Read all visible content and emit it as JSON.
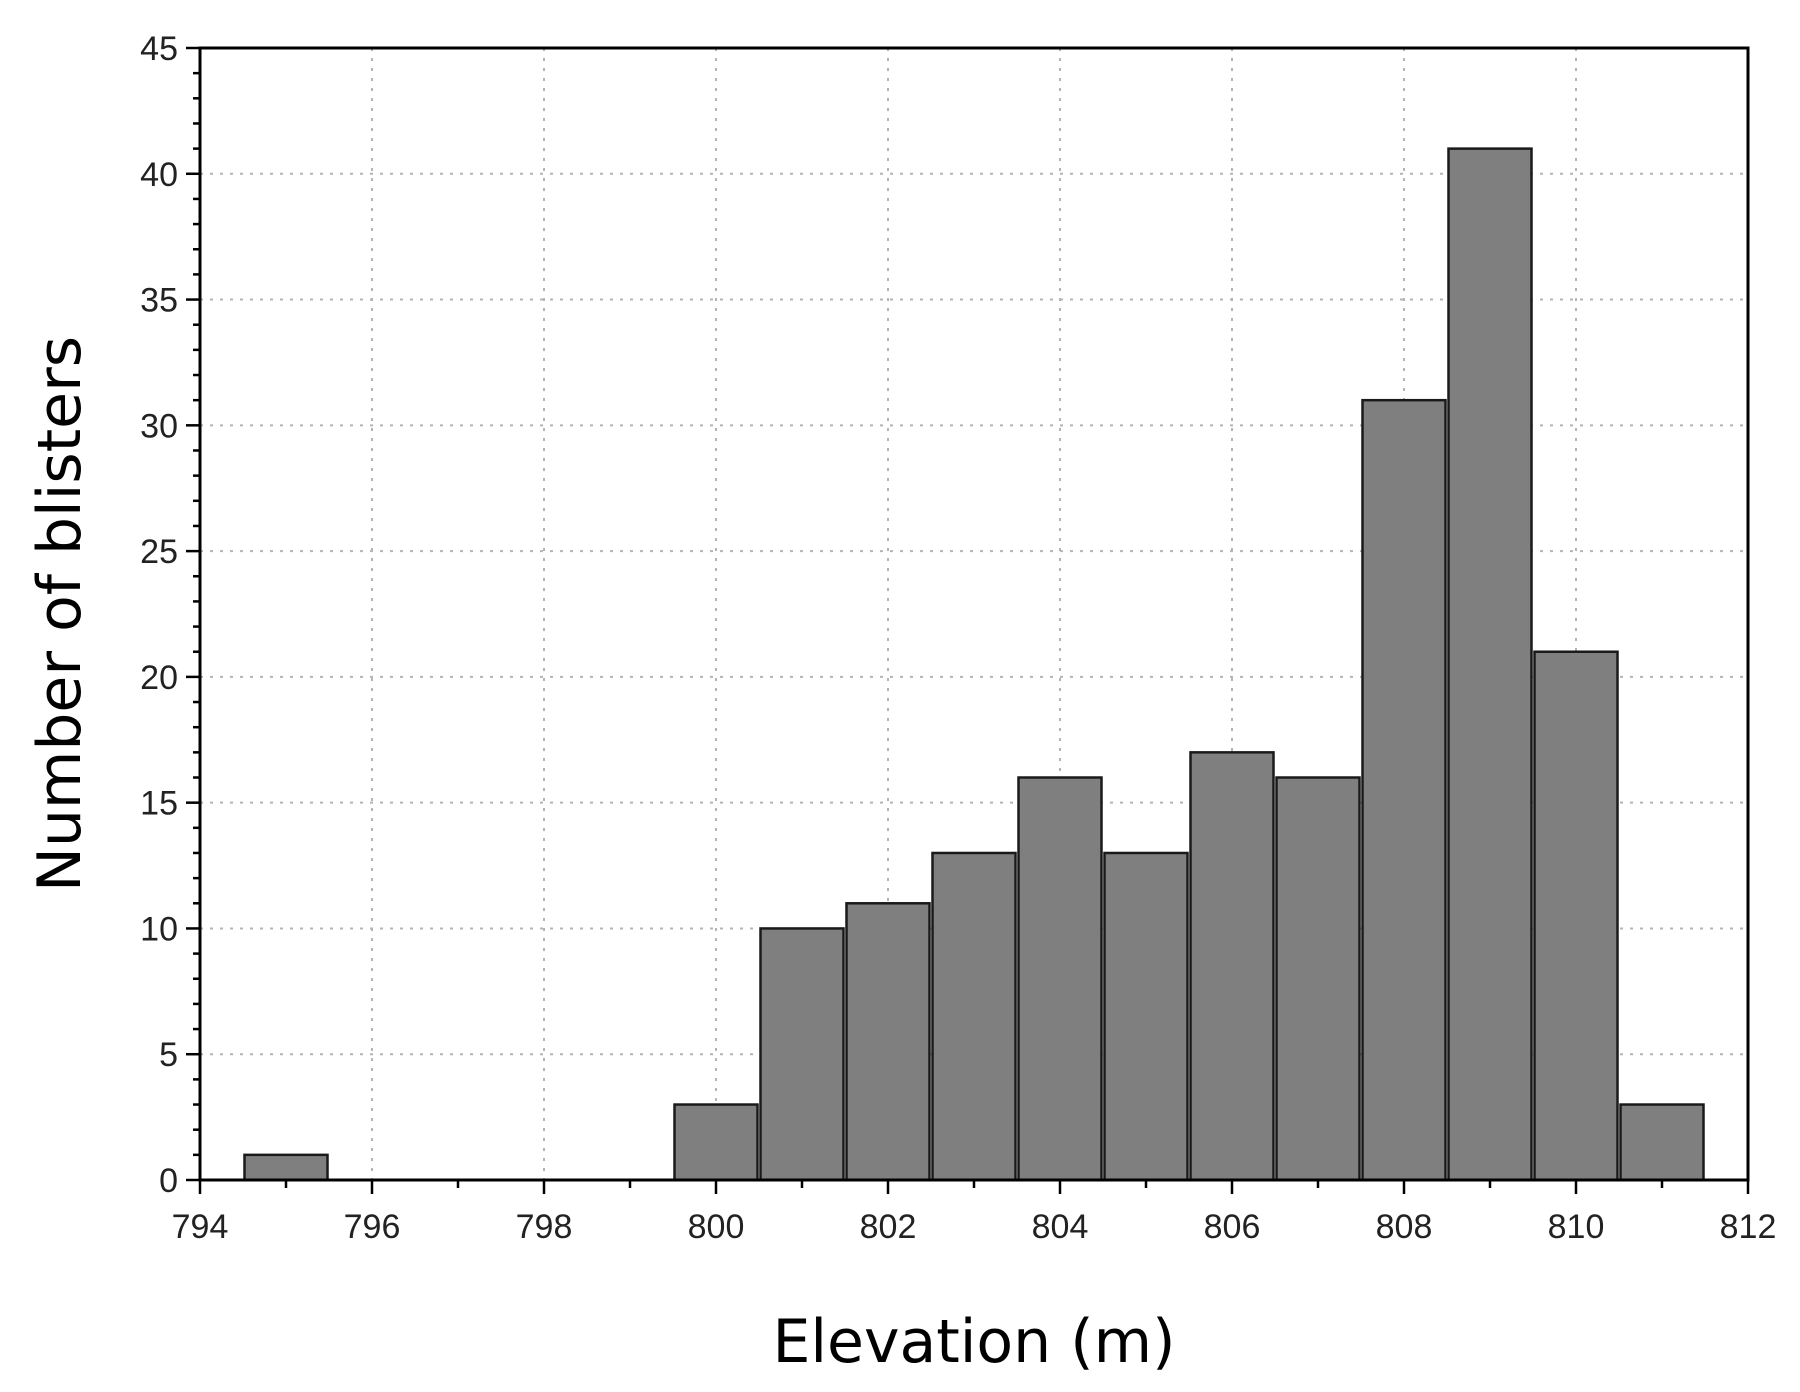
{
  "chart_data": {
    "type": "bar",
    "xlabel": "Elevation (m)",
    "ylabel": "Number of blisters",
    "xlim": [
      794,
      812
    ],
    "ylim": [
      0,
      45
    ],
    "x_ticks": [
      "794",
      "796",
      "798",
      "800",
      "802",
      "804",
      "806",
      "808",
      "810",
      "812"
    ],
    "y_ticks": [
      "0",
      "5",
      "10",
      "15",
      "20",
      "25",
      "30",
      "35",
      "40",
      "45"
    ],
    "grid": true,
    "bin_width": 1,
    "x": [
      795,
      796,
      797,
      798,
      799,
      800,
      801,
      802,
      803,
      804,
      805,
      806,
      807,
      808,
      809,
      810,
      811
    ],
    "values": [
      1,
      0,
      0,
      0,
      0,
      3,
      10,
      11,
      13,
      16,
      13,
      17,
      16,
      31,
      41,
      21,
      3
    ],
    "colors": {
      "bar_fill": "#7f7f7f",
      "bar_edge": "#1a1a1a",
      "grid": "#b4b4b4"
    }
  }
}
